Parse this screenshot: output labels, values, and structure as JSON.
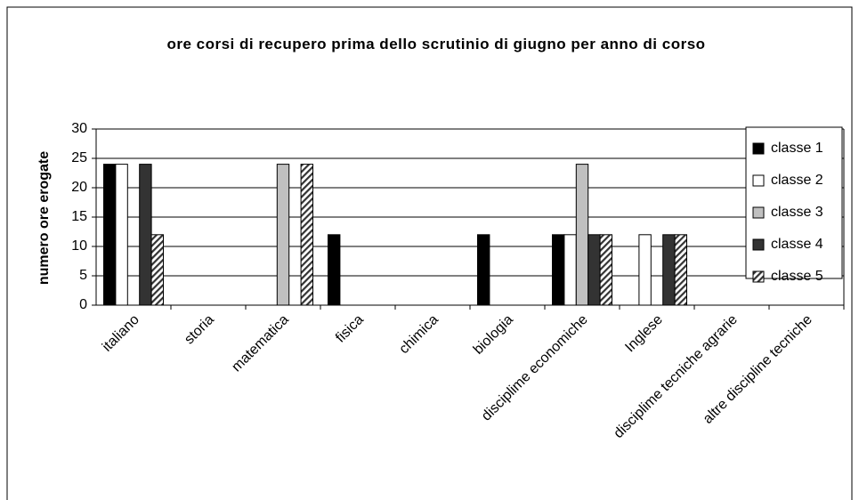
{
  "chart_data": {
    "type": "bar",
    "title": "ore corsi di recupero prima dello scrutinio di giugno per anno di corso",
    "y_label": "numero ore erogate",
    "categories": [
      "italiano",
      "storia",
      "matematica",
      "fisica",
      "chimica",
      "biologia",
      "disciplime economiche",
      "Inglese",
      "disciplime tecniche agrarie",
      "altre discipline tecniche"
    ],
    "series": [
      {
        "name": "classe 1",
        "color": "#000000",
        "values": [
          24,
          0,
          0,
          12,
          0,
          12,
          12,
          0,
          0,
          0
        ]
      },
      {
        "name": "classe 2",
        "color": "#ffffff",
        "values": [
          24,
          0,
          0,
          0,
          0,
          0,
          12,
          12,
          0,
          0
        ]
      },
      {
        "name": "classe 3",
        "color": "#c0c0c0",
        "values": [
          0,
          0,
          24,
          0,
          0,
          0,
          24,
          0,
          0,
          0
        ]
      },
      {
        "name": "classe 4",
        "color": "#333333",
        "values": [
          24,
          0,
          0,
          0,
          0,
          0,
          12,
          12,
          0,
          0
        ]
      },
      {
        "name": "classe 5",
        "color": "#333333",
        "pattern": "hatch",
        "values": [
          12,
          0,
          24,
          0,
          0,
          0,
          12,
          12,
          0,
          0
        ]
      }
    ],
    "ylim": [
      0,
      30
    ],
    "yticks": [
      0,
      5,
      10,
      15,
      20,
      25,
      30
    ],
    "grid": true,
    "legend": "right"
  }
}
